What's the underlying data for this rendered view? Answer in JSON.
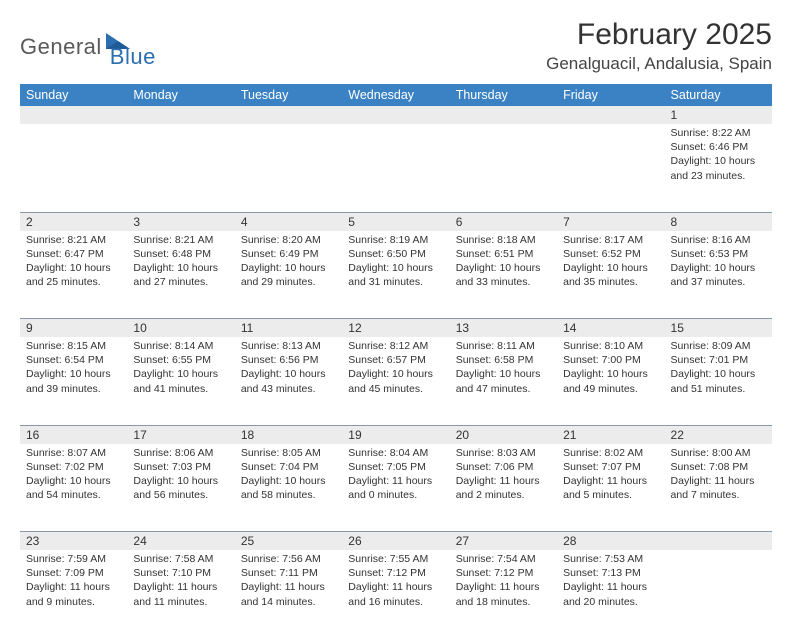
{
  "logo": {
    "text1": "General",
    "text2": "Blue"
  },
  "title": "February 2025",
  "location": "Genalguacil, Andalusia, Spain",
  "colors": {
    "header_bg": "#3b82c4",
    "header_fg": "#ffffff",
    "daynum_bg": "#ececec",
    "rule": "#8899aa",
    "logo_gray": "#5a5a5a",
    "logo_blue": "#2b6fb0"
  },
  "day_headers": [
    "Sunday",
    "Monday",
    "Tuesday",
    "Wednesday",
    "Thursday",
    "Friday",
    "Saturday"
  ],
  "weeks": [
    [
      {
        "n": "",
        "sr": "",
        "ss": "",
        "dl": ""
      },
      {
        "n": "",
        "sr": "",
        "ss": "",
        "dl": ""
      },
      {
        "n": "",
        "sr": "",
        "ss": "",
        "dl": ""
      },
      {
        "n": "",
        "sr": "",
        "ss": "",
        "dl": ""
      },
      {
        "n": "",
        "sr": "",
        "ss": "",
        "dl": ""
      },
      {
        "n": "",
        "sr": "",
        "ss": "",
        "dl": ""
      },
      {
        "n": "1",
        "sr": "Sunrise: 8:22 AM",
        "ss": "Sunset: 6:46 PM",
        "dl": "Daylight: 10 hours and 23 minutes."
      }
    ],
    [
      {
        "n": "2",
        "sr": "Sunrise: 8:21 AM",
        "ss": "Sunset: 6:47 PM",
        "dl": "Daylight: 10 hours and 25 minutes."
      },
      {
        "n": "3",
        "sr": "Sunrise: 8:21 AM",
        "ss": "Sunset: 6:48 PM",
        "dl": "Daylight: 10 hours and 27 minutes."
      },
      {
        "n": "4",
        "sr": "Sunrise: 8:20 AM",
        "ss": "Sunset: 6:49 PM",
        "dl": "Daylight: 10 hours and 29 minutes."
      },
      {
        "n": "5",
        "sr": "Sunrise: 8:19 AM",
        "ss": "Sunset: 6:50 PM",
        "dl": "Daylight: 10 hours and 31 minutes."
      },
      {
        "n": "6",
        "sr": "Sunrise: 8:18 AM",
        "ss": "Sunset: 6:51 PM",
        "dl": "Daylight: 10 hours and 33 minutes."
      },
      {
        "n": "7",
        "sr": "Sunrise: 8:17 AM",
        "ss": "Sunset: 6:52 PM",
        "dl": "Daylight: 10 hours and 35 minutes."
      },
      {
        "n": "8",
        "sr": "Sunrise: 8:16 AM",
        "ss": "Sunset: 6:53 PM",
        "dl": "Daylight: 10 hours and 37 minutes."
      }
    ],
    [
      {
        "n": "9",
        "sr": "Sunrise: 8:15 AM",
        "ss": "Sunset: 6:54 PM",
        "dl": "Daylight: 10 hours and 39 minutes."
      },
      {
        "n": "10",
        "sr": "Sunrise: 8:14 AM",
        "ss": "Sunset: 6:55 PM",
        "dl": "Daylight: 10 hours and 41 minutes."
      },
      {
        "n": "11",
        "sr": "Sunrise: 8:13 AM",
        "ss": "Sunset: 6:56 PM",
        "dl": "Daylight: 10 hours and 43 minutes."
      },
      {
        "n": "12",
        "sr": "Sunrise: 8:12 AM",
        "ss": "Sunset: 6:57 PM",
        "dl": "Daylight: 10 hours and 45 minutes."
      },
      {
        "n": "13",
        "sr": "Sunrise: 8:11 AM",
        "ss": "Sunset: 6:58 PM",
        "dl": "Daylight: 10 hours and 47 minutes."
      },
      {
        "n": "14",
        "sr": "Sunrise: 8:10 AM",
        "ss": "Sunset: 7:00 PM",
        "dl": "Daylight: 10 hours and 49 minutes."
      },
      {
        "n": "15",
        "sr": "Sunrise: 8:09 AM",
        "ss": "Sunset: 7:01 PM",
        "dl": "Daylight: 10 hours and 51 minutes."
      }
    ],
    [
      {
        "n": "16",
        "sr": "Sunrise: 8:07 AM",
        "ss": "Sunset: 7:02 PM",
        "dl": "Daylight: 10 hours and 54 minutes."
      },
      {
        "n": "17",
        "sr": "Sunrise: 8:06 AM",
        "ss": "Sunset: 7:03 PM",
        "dl": "Daylight: 10 hours and 56 minutes."
      },
      {
        "n": "18",
        "sr": "Sunrise: 8:05 AM",
        "ss": "Sunset: 7:04 PM",
        "dl": "Daylight: 10 hours and 58 minutes."
      },
      {
        "n": "19",
        "sr": "Sunrise: 8:04 AM",
        "ss": "Sunset: 7:05 PM",
        "dl": "Daylight: 11 hours and 0 minutes."
      },
      {
        "n": "20",
        "sr": "Sunrise: 8:03 AM",
        "ss": "Sunset: 7:06 PM",
        "dl": "Daylight: 11 hours and 2 minutes."
      },
      {
        "n": "21",
        "sr": "Sunrise: 8:02 AM",
        "ss": "Sunset: 7:07 PM",
        "dl": "Daylight: 11 hours and 5 minutes."
      },
      {
        "n": "22",
        "sr": "Sunrise: 8:00 AM",
        "ss": "Sunset: 7:08 PM",
        "dl": "Daylight: 11 hours and 7 minutes."
      }
    ],
    [
      {
        "n": "23",
        "sr": "Sunrise: 7:59 AM",
        "ss": "Sunset: 7:09 PM",
        "dl": "Daylight: 11 hours and 9 minutes."
      },
      {
        "n": "24",
        "sr": "Sunrise: 7:58 AM",
        "ss": "Sunset: 7:10 PM",
        "dl": "Daylight: 11 hours and 11 minutes."
      },
      {
        "n": "25",
        "sr": "Sunrise: 7:56 AM",
        "ss": "Sunset: 7:11 PM",
        "dl": "Daylight: 11 hours and 14 minutes."
      },
      {
        "n": "26",
        "sr": "Sunrise: 7:55 AM",
        "ss": "Sunset: 7:12 PM",
        "dl": "Daylight: 11 hours and 16 minutes."
      },
      {
        "n": "27",
        "sr": "Sunrise: 7:54 AM",
        "ss": "Sunset: 7:12 PM",
        "dl": "Daylight: 11 hours and 18 minutes."
      },
      {
        "n": "28",
        "sr": "Sunrise: 7:53 AM",
        "ss": "Sunset: 7:13 PM",
        "dl": "Daylight: 11 hours and 20 minutes."
      },
      {
        "n": "",
        "sr": "",
        "ss": "",
        "dl": ""
      }
    ]
  ]
}
